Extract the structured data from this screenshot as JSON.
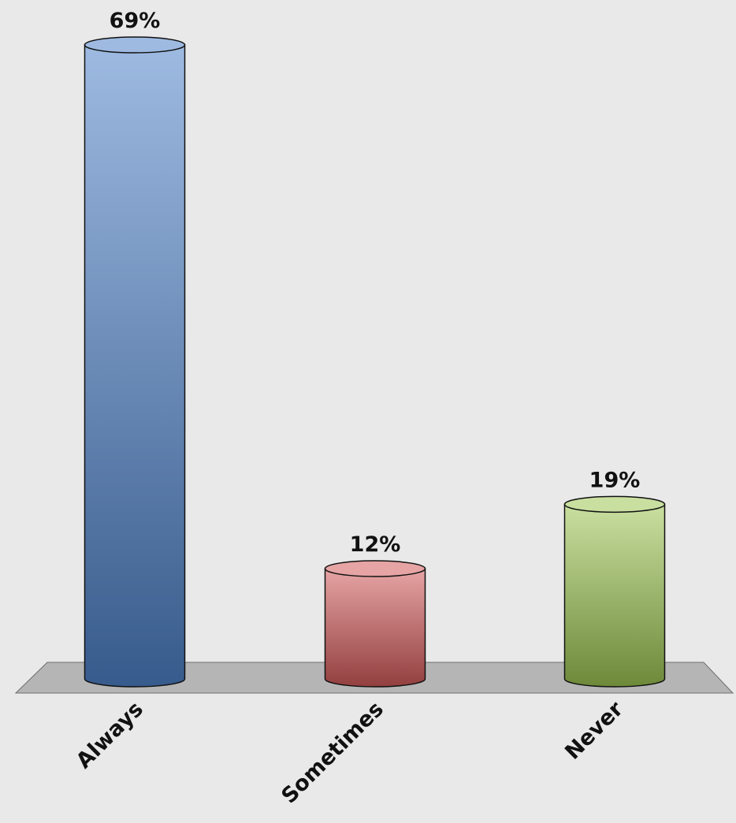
{
  "chart_data": {
    "type": "bar",
    "categories": [
      "Always",
      "Sometimes",
      "Never"
    ],
    "values": [
      69,
      12,
      19
    ],
    "value_labels": [
      "69%",
      "12%",
      "19%"
    ],
    "colors": [
      "#4f82c8",
      "#d25a5a",
      "#9cc452"
    ]
  }
}
